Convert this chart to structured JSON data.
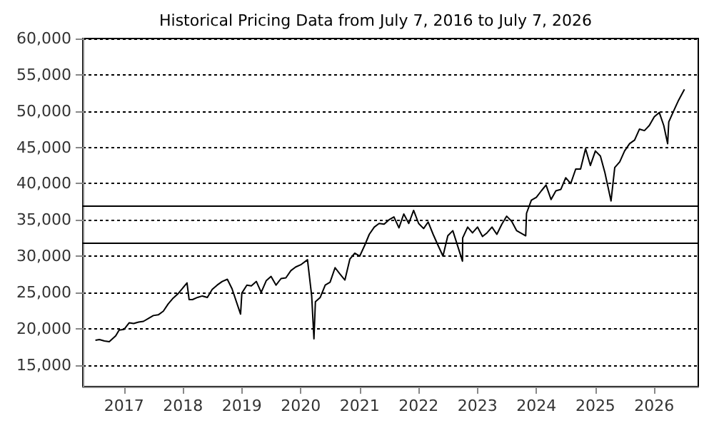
{
  "chart_data": {
    "type": "line",
    "title": "Historical Pricing Data from July 7, 2016 to July 7, 2026",
    "x": [
      "2016-07-07",
      "2016-08",
      "2016-09",
      "2016-10",
      "2016-11-10",
      "2016-12",
      "2017-01",
      "2017-02",
      "2017-03",
      "2017-04",
      "2017-05",
      "2017-06",
      "2017-07",
      "2017-08",
      "2017-09",
      "2017-10",
      "2017-11",
      "2017-12",
      "2018-01-26",
      "2018-02-08",
      "2018-03",
      "2018-04",
      "2018-05",
      "2018-06",
      "2018-07",
      "2018-08",
      "2018-09",
      "2018-10-03",
      "2018-11",
      "2018-12-24",
      "2019-01",
      "2019-02",
      "2019-03",
      "2019-04",
      "2019-05",
      "2019-06",
      "2019-07",
      "2019-08",
      "2019-09",
      "2019-10",
      "2019-11",
      "2019-12",
      "2020-01",
      "2020-02-12",
      "2020-03-09",
      "2020-03-23",
      "2020-04",
      "2020-05",
      "2020-06",
      "2020-07",
      "2020-08",
      "2020-09",
      "2020-10",
      "2020-11",
      "2020-12",
      "2021-01",
      "2021-02",
      "2021-03",
      "2021-04",
      "2021-05",
      "2021-06",
      "2021-07",
      "2021-08",
      "2021-09",
      "2021-10",
      "2021-11",
      "2021-12",
      "2022-01",
      "2022-02",
      "2022-03",
      "2022-04",
      "2022-05",
      "2022-06",
      "2022-07",
      "2022-08",
      "2022-09-30",
      "2022-10",
      "2022-11",
      "2022-12",
      "2023-01",
      "2023-02",
      "2023-03",
      "2023-04",
      "2023-05",
      "2023-06",
      "2023-07",
      "2023-08",
      "2023-09",
      "2023-10-27",
      "2023-11",
      "2023-12",
      "2024-01",
      "2024-02",
      "2024-03",
      "2024-04",
      "2024-05",
      "2024-06",
      "2024-07",
      "2024-08",
      "2024-09",
      "2024-10",
      "2024-11",
      "2024-12",
      "2025-01",
      "2025-02",
      "2025-03",
      "2025-04-08",
      "2025-05",
      "2025-06",
      "2025-07",
      "2025-08",
      "2025-09",
      "2025-10",
      "2025-11",
      "2025-12",
      "2026-01",
      "2026-02",
      "2026-03-01",
      "2026-03-25",
      "2026-04",
      "2026-05",
      "2026-06",
      "2026-07-07"
    ],
    "series": [
      {
        "color": "#000000",
        "values": [
          18400,
          18500,
          18300,
          18200,
          19000,
          19800,
          19900,
          20800,
          20700,
          20900,
          21000,
          21400,
          21800,
          21900,
          22400,
          23400,
          24200,
          24800,
          26300,
          24000,
          24000,
          24300,
          24500,
          24300,
          25400,
          26000,
          26500,
          26800,
          25500,
          22000,
          24900,
          26000,
          25900,
          26500,
          25000,
          26600,
          27200,
          26000,
          26900,
          27000,
          28000,
          28500,
          28800,
          29500,
          24500,
          18600,
          23700,
          24300,
          26000,
          26400,
          28400,
          27500,
          26700,
          29600,
          30400,
          30000,
          31500,
          33000,
          34000,
          34500,
          34400,
          35000,
          35400,
          33900,
          35800,
          34500,
          36300,
          34500,
          33800,
          34700,
          33000,
          31500,
          30000,
          32800,
          33500,
          29300,
          32500,
          34000,
          33200,
          34000,
          32700,
          33200,
          34000,
          33000,
          34400,
          35500,
          34800,
          33500,
          32800,
          35900,
          37700,
          38100,
          39000,
          39800,
          37800,
          39000,
          39200,
          40800,
          40000,
          42000,
          42000,
          44800,
          42500,
          44500,
          43800,
          41500,
          37600,
          42200,
          43000,
          44500,
          45500,
          46000,
          47500,
          47300,
          48000,
          49200,
          49800,
          48000,
          45500,
          48500,
          50000,
          51500,
          53000
        ]
      }
    ],
    "xlim": [
      "2016-04-20",
      "2026-10-01"
    ],
    "xticks": [
      {
        "value": "2017",
        "label": "2017"
      },
      {
        "value": "2018",
        "label": "2018"
      },
      {
        "value": "2019",
        "label": "2019"
      },
      {
        "value": "2020",
        "label": "2020"
      },
      {
        "value": "2021",
        "label": "2021"
      },
      {
        "value": "2022",
        "label": "2022"
      },
      {
        "value": "2023",
        "label": "2023"
      },
      {
        "value": "2024",
        "label": "2024"
      },
      {
        "value": "2025",
        "label": "2025"
      },
      {
        "value": "2026",
        "label": "2026"
      }
    ],
    "ylim": [
      12000,
      60000
    ],
    "yticks": [
      {
        "value": 15000,
        "label": "15,000"
      },
      {
        "value": 20000,
        "label": "20,000"
      },
      {
        "value": 25000,
        "label": "25,000"
      },
      {
        "value": 30000,
        "label": "30,000"
      },
      {
        "value": 35000,
        "label": "35,000"
      },
      {
        "value": 40000,
        "label": "40,000"
      },
      {
        "value": 45000,
        "label": "45,000"
      },
      {
        "value": 50000,
        "label": "50,000"
      },
      {
        "value": 55000,
        "label": "55,000"
      },
      {
        "value": 60000,
        "label": "60,000"
      }
    ],
    "ref_lines": [
      {
        "axis": "y",
        "value": 37000,
        "color": "#000000",
        "line_style": "solid"
      },
      {
        "axis": "y",
        "value": 31800,
        "color": "#000000",
        "line_style": "solid"
      }
    ],
    "grid": "y",
    "line_style": "solid",
    "marker": "none"
  }
}
